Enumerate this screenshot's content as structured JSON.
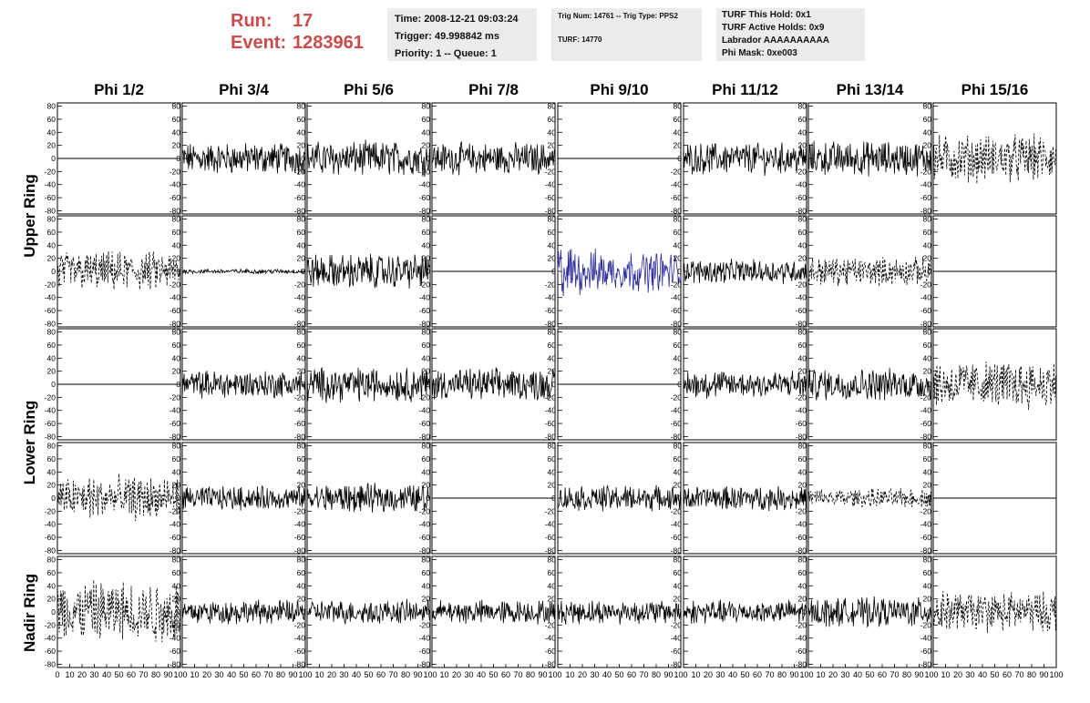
{
  "header": {
    "run_label": "Run:",
    "run_value": "17",
    "event_label": "Event:",
    "event_value": "1283961",
    "time": "Time: 2008-12-21 09:03:24",
    "trigger": "Trigger: 49.998842 ms",
    "priority": "Priority: 1 -- Queue: 1",
    "trig_num": "Trig Num: 14761 -- Trig Type: PPS2",
    "turf": "TURF: 14770",
    "turf_this_hold": "TURF This Hold: 0x1",
    "turf_active_holds": "TURF Active Holds: 0x9",
    "labrador": "Labrador AAAAAAAAAA",
    "phi_mask": "Phi Mask: 0xe003"
  },
  "chart_data": {
    "type": "line",
    "columns": [
      "Phi 1/2",
      "Phi 3/4",
      "Phi 5/6",
      "Phi 7/8",
      "Phi 9/10",
      "Phi 11/12",
      "Phi 13/14",
      "Phi 15/16"
    ],
    "ring_labels": [
      "Upper Ring",
      "Lower Ring",
      "Nadir Ring"
    ],
    "ylim": [
      -85,
      85
    ],
    "yticks": [
      -80,
      -60,
      -40,
      -20,
      0,
      20,
      40,
      60,
      80
    ],
    "xlim": [
      0,
      100
    ],
    "xticks": [
      0,
      10,
      20,
      30,
      40,
      50,
      60,
      70,
      80,
      90,
      100
    ],
    "highlight_color": "#2a2a9a",
    "line_color": "#000000",
    "panels": [
      [
        "flat",
        "solid",
        "solid",
        "solid",
        "flat",
        "solid",
        "solid",
        "dashed"
      ],
      [
        "dashed",
        "small",
        "solid",
        "flat",
        "highlight",
        "solid",
        "dashed",
        "flat"
      ],
      [
        "flat",
        "solid",
        "solid",
        "solid",
        "flat",
        "solid",
        "solid",
        "dashed"
      ],
      [
        "dashed",
        "solid",
        "solid",
        "flat",
        "solid",
        "solid",
        "dashed",
        "flat"
      ],
      [
        "dashed",
        "solid",
        "solid",
        "solid",
        "solid",
        "solid",
        "solid",
        "dashed"
      ]
    ],
    "amplitudes": [
      [
        0,
        20,
        22,
        20,
        0,
        20,
        22,
        30
      ],
      [
        25,
        3,
        22,
        0,
        38,
        15,
        18,
        0
      ],
      [
        0,
        18,
        22,
        20,
        0,
        18,
        20,
        30
      ],
      [
        28,
        15,
        18,
        0,
        16,
        15,
        12,
        0
      ],
      [
        40,
        15,
        15,
        15,
        15,
        15,
        18,
        25
      ]
    ]
  }
}
